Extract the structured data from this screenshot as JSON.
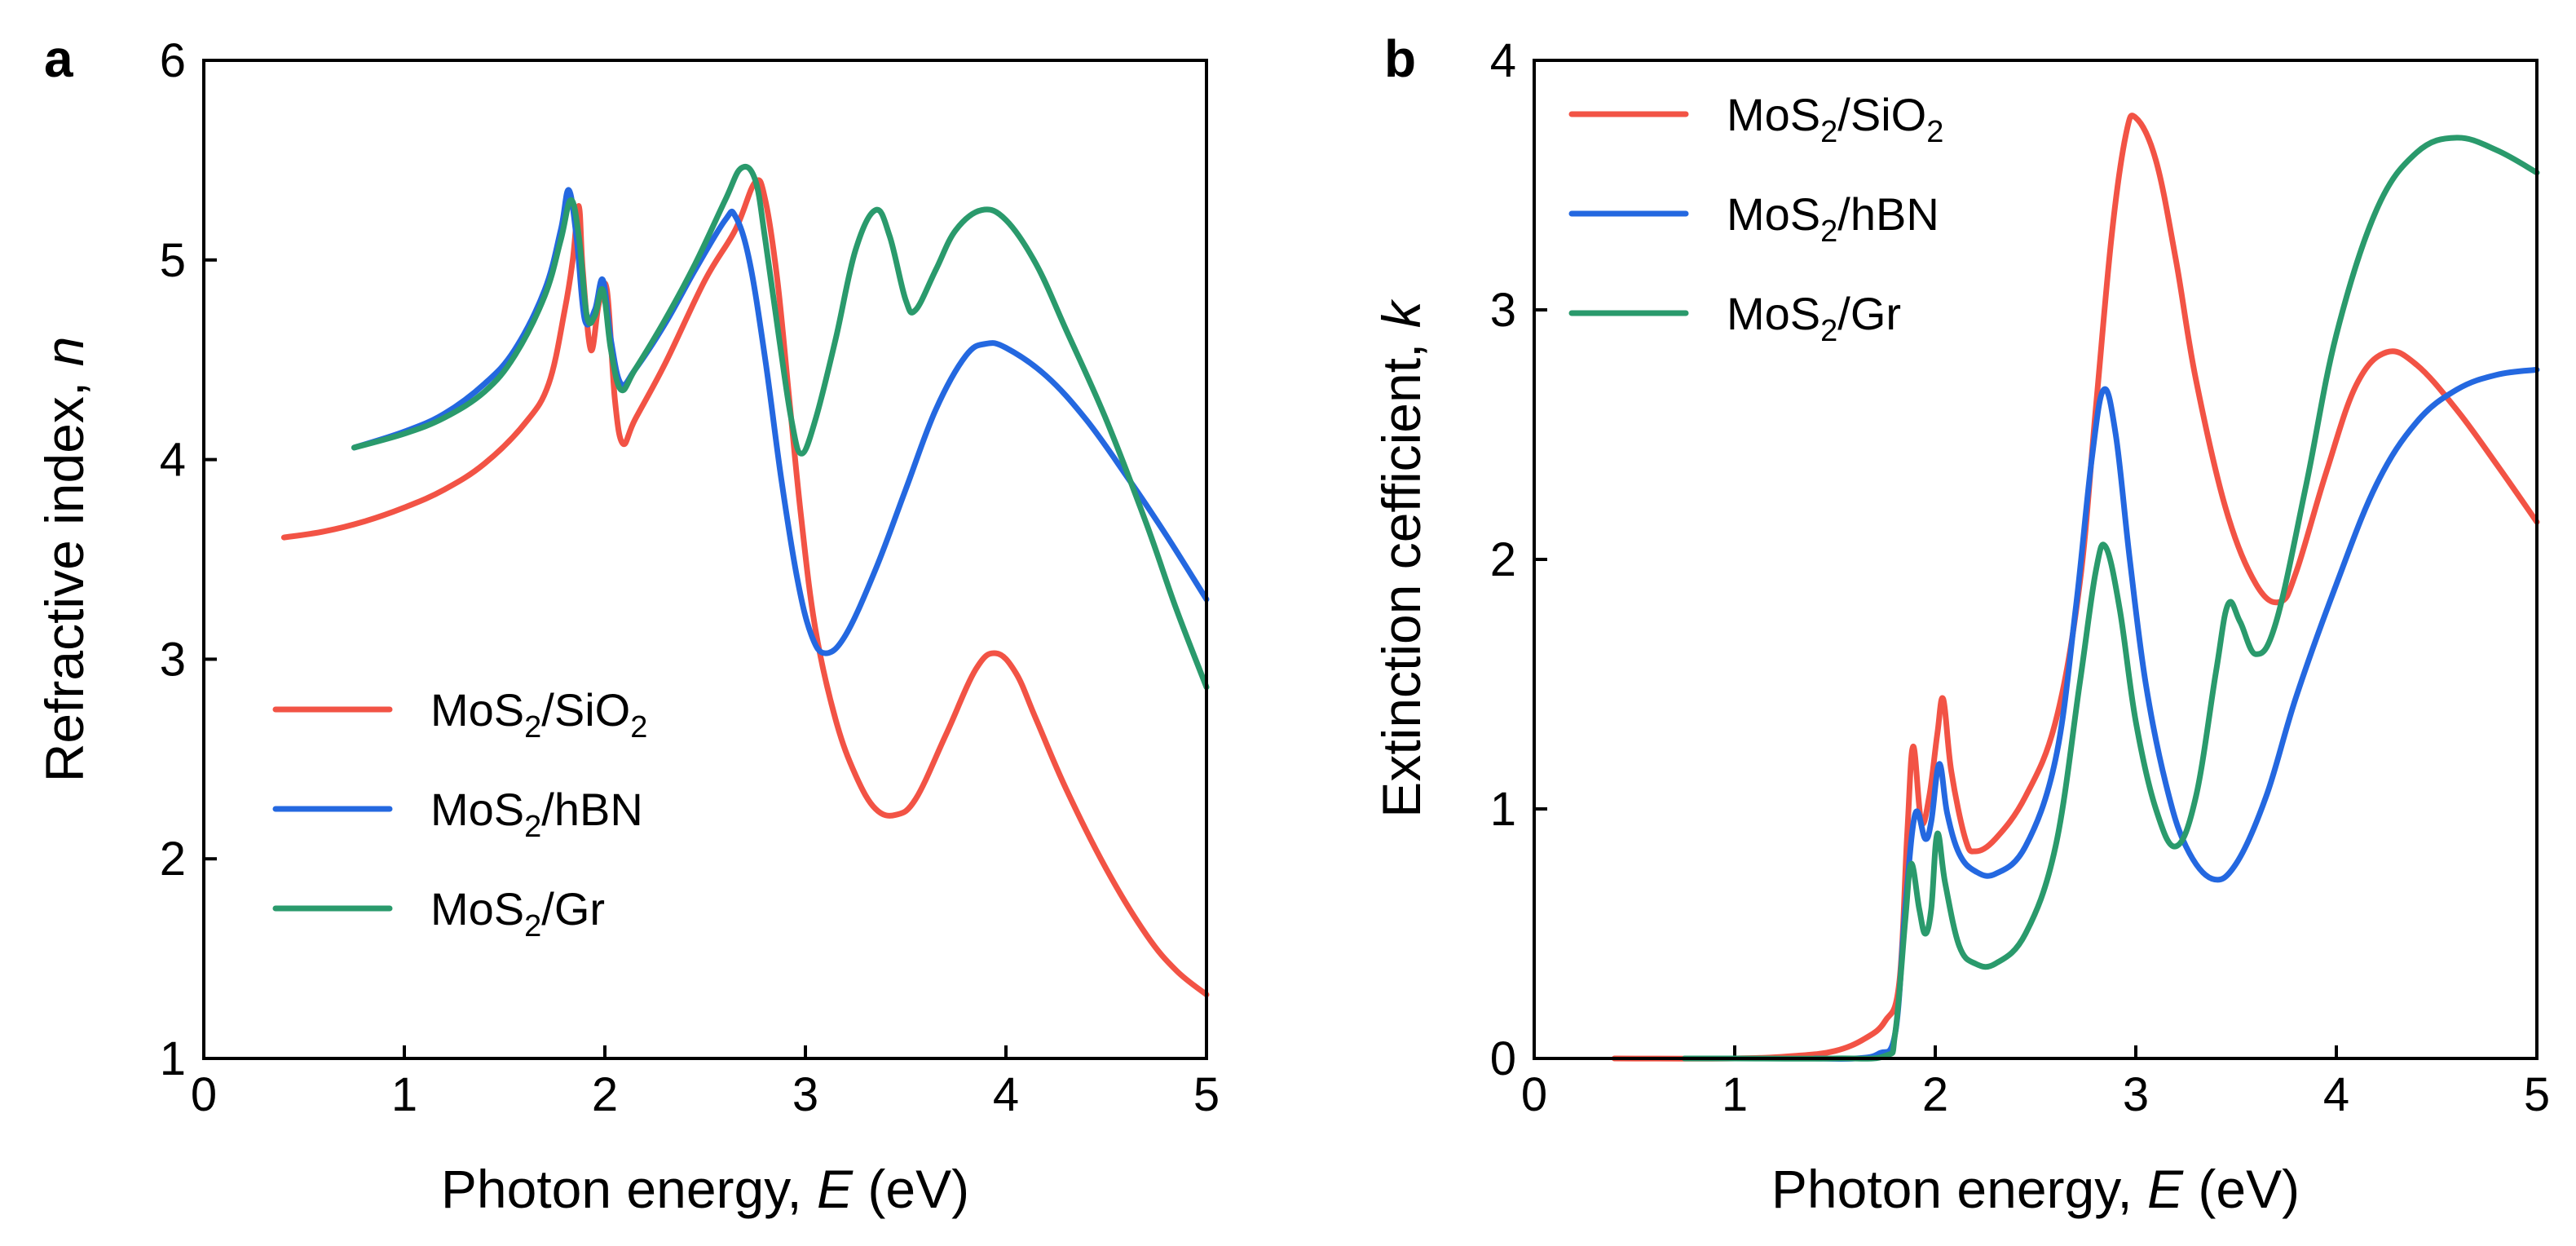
{
  "figure": {
    "panels": [
      "a",
      "b"
    ]
  },
  "legend_labels": [
    {
      "pre": "MoS",
      "sub1": "2",
      "mid": "/SiO",
      "sub2": "2"
    },
    {
      "pre": "MoS",
      "sub1": "2",
      "mid": "/hBN",
      "sub2": ""
    },
    {
      "pre": "MoS",
      "sub1": "2",
      "mid": "/Gr",
      "sub2": ""
    }
  ],
  "colors": {
    "MoS2/SiO2": "#f25345",
    "MoS2/hBN": "#2468e0",
    "MoS2/Gr": "#2a9a6c"
  },
  "chart_data": [
    {
      "panel": "a",
      "type": "line",
      "title": "",
      "xlabel": {
        "prefix": "Photon energy, ",
        "italic": "E",
        "suffix": " (eV)"
      },
      "ylabel": {
        "prefix": "Refractive index, ",
        "italic": "n"
      },
      "xlim": [
        0,
        5
      ],
      "ylim": [
        1,
        6
      ],
      "xticks": [
        0,
        1,
        2,
        3,
        4,
        5
      ],
      "yticks": [
        1,
        2,
        3,
        4,
        5,
        6
      ],
      "legend_position": "bottom-left",
      "series": [
        {
          "name": "MoS2/SiO2",
          "color": "#f25345",
          "points": [
            [
              0.4,
              3.61
            ],
            [
              0.6,
              3.64
            ],
            [
              0.8,
              3.69
            ],
            [
              1.0,
              3.76
            ],
            [
              1.2,
              3.85
            ],
            [
              1.4,
              3.98
            ],
            [
              1.6,
              4.18
            ],
            [
              1.72,
              4.38
            ],
            [
              1.8,
              4.75
            ],
            [
              1.84,
              5.0
            ],
            [
              1.87,
              5.27
            ],
            [
              1.89,
              4.95
            ],
            [
              1.93,
              4.55
            ],
            [
              1.97,
              4.78
            ],
            [
              2.01,
              4.85
            ],
            [
              2.05,
              4.3
            ],
            [
              2.09,
              4.08
            ],
            [
              2.15,
              4.2
            ],
            [
              2.3,
              4.48
            ],
            [
              2.5,
              4.9
            ],
            [
              2.65,
              5.15
            ],
            [
              2.75,
              5.39
            ],
            [
              2.8,
              5.3
            ],
            [
              2.86,
              4.9
            ],
            [
              2.92,
              4.3
            ],
            [
              2.98,
              3.7
            ],
            [
              3.05,
              3.15
            ],
            [
              3.15,
              2.7
            ],
            [
              3.25,
              2.42
            ],
            [
              3.35,
              2.25
            ],
            [
              3.45,
              2.22
            ],
            [
              3.55,
              2.3
            ],
            [
              3.7,
              2.62
            ],
            [
              3.85,
              2.95
            ],
            [
              3.95,
              3.03
            ],
            [
              4.05,
              2.93
            ],
            [
              4.15,
              2.7
            ],
            [
              4.3,
              2.35
            ],
            [
              4.5,
              1.95
            ],
            [
              4.7,
              1.62
            ],
            [
              4.85,
              1.44
            ],
            [
              5.0,
              1.32
            ]
          ]
        },
        {
          "name": "MoS2/hBN",
          "color": "#2468e0",
          "points": [
            [
              0.75,
              4.06
            ],
            [
              1.0,
              4.14
            ],
            [
              1.2,
              4.23
            ],
            [
              1.4,
              4.38
            ],
            [
              1.55,
              4.55
            ],
            [
              1.7,
              4.85
            ],
            [
              1.78,
              5.15
            ],
            [
              1.82,
              5.35
            ],
            [
              1.86,
              5.1
            ],
            [
              1.9,
              4.7
            ],
            [
              1.95,
              4.75
            ],
            [
              1.99,
              4.9
            ],
            [
              2.03,
              4.6
            ],
            [
              2.08,
              4.38
            ],
            [
              2.15,
              4.45
            ],
            [
              2.3,
              4.68
            ],
            [
              2.45,
              4.95
            ],
            [
              2.6,
              5.2
            ],
            [
              2.65,
              5.22
            ],
            [
              2.72,
              5.0
            ],
            [
              2.8,
              4.5
            ],
            [
              2.88,
              3.9
            ],
            [
              2.96,
              3.4
            ],
            [
              3.03,
              3.12
            ],
            [
              3.1,
              3.03
            ],
            [
              3.2,
              3.12
            ],
            [
              3.35,
              3.45
            ],
            [
              3.5,
              3.85
            ],
            [
              3.65,
              4.25
            ],
            [
              3.8,
              4.52
            ],
            [
              3.9,
              4.58
            ],
            [
              4.0,
              4.56
            ],
            [
              4.2,
              4.42
            ],
            [
              4.4,
              4.2
            ],
            [
              4.6,
              3.92
            ],
            [
              4.8,
              3.62
            ],
            [
              5.0,
              3.3
            ]
          ]
        },
        {
          "name": "MoS2/Gr",
          "color": "#2a9a6c",
          "points": [
            [
              0.75,
              4.06
            ],
            [
              1.0,
              4.13
            ],
            [
              1.2,
              4.21
            ],
            [
              1.4,
              4.34
            ],
            [
              1.55,
              4.52
            ],
            [
              1.7,
              4.82
            ],
            [
              1.78,
              5.1
            ],
            [
              1.83,
              5.3
            ],
            [
              1.87,
              5.12
            ],
            [
              1.91,
              4.72
            ],
            [
              1.95,
              4.72
            ],
            [
              1.99,
              4.85
            ],
            [
              2.03,
              4.55
            ],
            [
              2.08,
              4.35
            ],
            [
              2.15,
              4.45
            ],
            [
              2.3,
              4.7
            ],
            [
              2.45,
              4.98
            ],
            [
              2.6,
              5.3
            ],
            [
              2.68,
              5.46
            ],
            [
              2.75,
              5.4
            ],
            [
              2.8,
              5.1
            ],
            [
              2.87,
              4.6
            ],
            [
              2.93,
              4.2
            ],
            [
              2.98,
              4.03
            ],
            [
              3.05,
              4.2
            ],
            [
              3.15,
              4.6
            ],
            [
              3.25,
              5.05
            ],
            [
              3.35,
              5.25
            ],
            [
              3.42,
              5.12
            ],
            [
              3.5,
              4.8
            ],
            [
              3.55,
              4.75
            ],
            [
              3.65,
              4.95
            ],
            [
              3.75,
              5.15
            ],
            [
              3.88,
              5.25
            ],
            [
              4.0,
              5.2
            ],
            [
              4.15,
              4.98
            ],
            [
              4.3,
              4.65
            ],
            [
              4.5,
              4.2
            ],
            [
              4.7,
              3.68
            ],
            [
              4.85,
              3.25
            ],
            [
              5.0,
              2.86
            ]
          ]
        }
      ]
    },
    {
      "panel": "b",
      "type": "line",
      "title": "",
      "xlabel": {
        "prefix": "Photon energy, ",
        "italic": "E",
        "suffix": " (eV)"
      },
      "ylabel": {
        "prefix": "Extinction cefficient, ",
        "italic": "k"
      },
      "xlim": [
        0,
        5
      ],
      "ylim": [
        0,
        4
      ],
      "xticks": [
        0,
        1,
        2,
        3,
        4,
        5
      ],
      "yticks": [
        0,
        1,
        2,
        3,
        4
      ],
      "legend_position": "top-left",
      "series": [
        {
          "name": "MoS2/SiO2",
          "color": "#f25345",
          "points": [
            [
              0.4,
              0.0
            ],
            [
              1.0,
              0.0
            ],
            [
              1.3,
              0.01
            ],
            [
              1.5,
              0.03
            ],
            [
              1.65,
              0.08
            ],
            [
              1.75,
              0.15
            ],
            [
              1.82,
              0.3
            ],
            [
              1.86,
              0.9
            ],
            [
              1.89,
              1.25
            ],
            [
              1.93,
              0.95
            ],
            [
              1.97,
              1.05
            ],
            [
              2.01,
              1.3
            ],
            [
              2.04,
              1.44
            ],
            [
              2.08,
              1.15
            ],
            [
              2.15,
              0.88
            ],
            [
              2.2,
              0.83
            ],
            [
              2.3,
              0.88
            ],
            [
              2.45,
              1.05
            ],
            [
              2.6,
              1.35
            ],
            [
              2.72,
              1.9
            ],
            [
              2.8,
              2.6
            ],
            [
              2.88,
              3.3
            ],
            [
              2.95,
              3.7
            ],
            [
              3.0,
              3.77
            ],
            [
              3.1,
              3.6
            ],
            [
              3.2,
              3.2
            ],
            [
              3.3,
              2.72
            ],
            [
              3.45,
              2.2
            ],
            [
              3.6,
              1.9
            ],
            [
              3.72,
              1.83
            ],
            [
              3.8,
              1.95
            ],
            [
              3.95,
              2.35
            ],
            [
              4.1,
              2.7
            ],
            [
              4.25,
              2.83
            ],
            [
              4.4,
              2.78
            ],
            [
              4.6,
              2.6
            ],
            [
              4.8,
              2.38
            ],
            [
              5.0,
              2.15
            ]
          ]
        },
        {
          "name": "MoS2/hBN",
          "color": "#2468e0",
          "points": [
            [
              1.4,
              0.0
            ],
            [
              1.6,
              0.0
            ],
            [
              1.72,
              0.02
            ],
            [
              1.8,
              0.1
            ],
            [
              1.85,
              0.6
            ],
            [
              1.9,
              0.98
            ],
            [
              1.95,
              0.88
            ],
            [
              1.98,
              0.95
            ],
            [
              2.02,
              1.18
            ],
            [
              2.06,
              0.98
            ],
            [
              2.12,
              0.82
            ],
            [
              2.2,
              0.75
            ],
            [
              2.3,
              0.74
            ],
            [
              2.45,
              0.85
            ],
            [
              2.6,
              1.2
            ],
            [
              2.7,
              1.8
            ],
            [
              2.78,
              2.4
            ],
            [
              2.84,
              2.68
            ],
            [
              2.9,
              2.5
            ],
            [
              2.97,
              2.0
            ],
            [
              3.05,
              1.5
            ],
            [
              3.15,
              1.1
            ],
            [
              3.25,
              0.85
            ],
            [
              3.38,
              0.72
            ],
            [
              3.5,
              0.78
            ],
            [
              3.65,
              1.05
            ],
            [
              3.8,
              1.45
            ],
            [
              4.0,
              1.9
            ],
            [
              4.2,
              2.3
            ],
            [
              4.4,
              2.55
            ],
            [
              4.6,
              2.68
            ],
            [
              4.8,
              2.74
            ],
            [
              5.0,
              2.76
            ]
          ]
        },
        {
          "name": "MoS2/Gr",
          "color": "#2a9a6c",
          "points": [
            [
              0.75,
              0.0
            ],
            [
              1.0,
              0.0
            ],
            [
              1.5,
              0.0
            ],
            [
              1.75,
              0.01
            ],
            [
              1.8,
              0.1
            ],
            [
              1.85,
              0.55
            ],
            [
              1.88,
              0.78
            ],
            [
              1.92,
              0.6
            ],
            [
              1.95,
              0.5
            ],
            [
              1.98,
              0.6
            ],
            [
              2.01,
              0.9
            ],
            [
              2.05,
              0.7
            ],
            [
              2.12,
              0.45
            ],
            [
              2.2,
              0.38
            ],
            [
              2.3,
              0.38
            ],
            [
              2.45,
              0.5
            ],
            [
              2.6,
              0.85
            ],
            [
              2.72,
              1.5
            ],
            [
              2.8,
              1.95
            ],
            [
              2.85,
              2.05
            ],
            [
              2.92,
              1.8
            ],
            [
              3.0,
              1.35
            ],
            [
              3.1,
              1.0
            ],
            [
              3.2,
              0.85
            ],
            [
              3.3,
              1.05
            ],
            [
              3.4,
              1.55
            ],
            [
              3.46,
              1.82
            ],
            [
              3.52,
              1.75
            ],
            [
              3.6,
              1.62
            ],
            [
              3.7,
              1.75
            ],
            [
              3.85,
              2.3
            ],
            [
              4.0,
              2.9
            ],
            [
              4.2,
              3.4
            ],
            [
              4.4,
              3.63
            ],
            [
              4.6,
              3.69
            ],
            [
              4.8,
              3.64
            ],
            [
              5.0,
              3.55
            ]
          ]
        }
      ]
    }
  ]
}
